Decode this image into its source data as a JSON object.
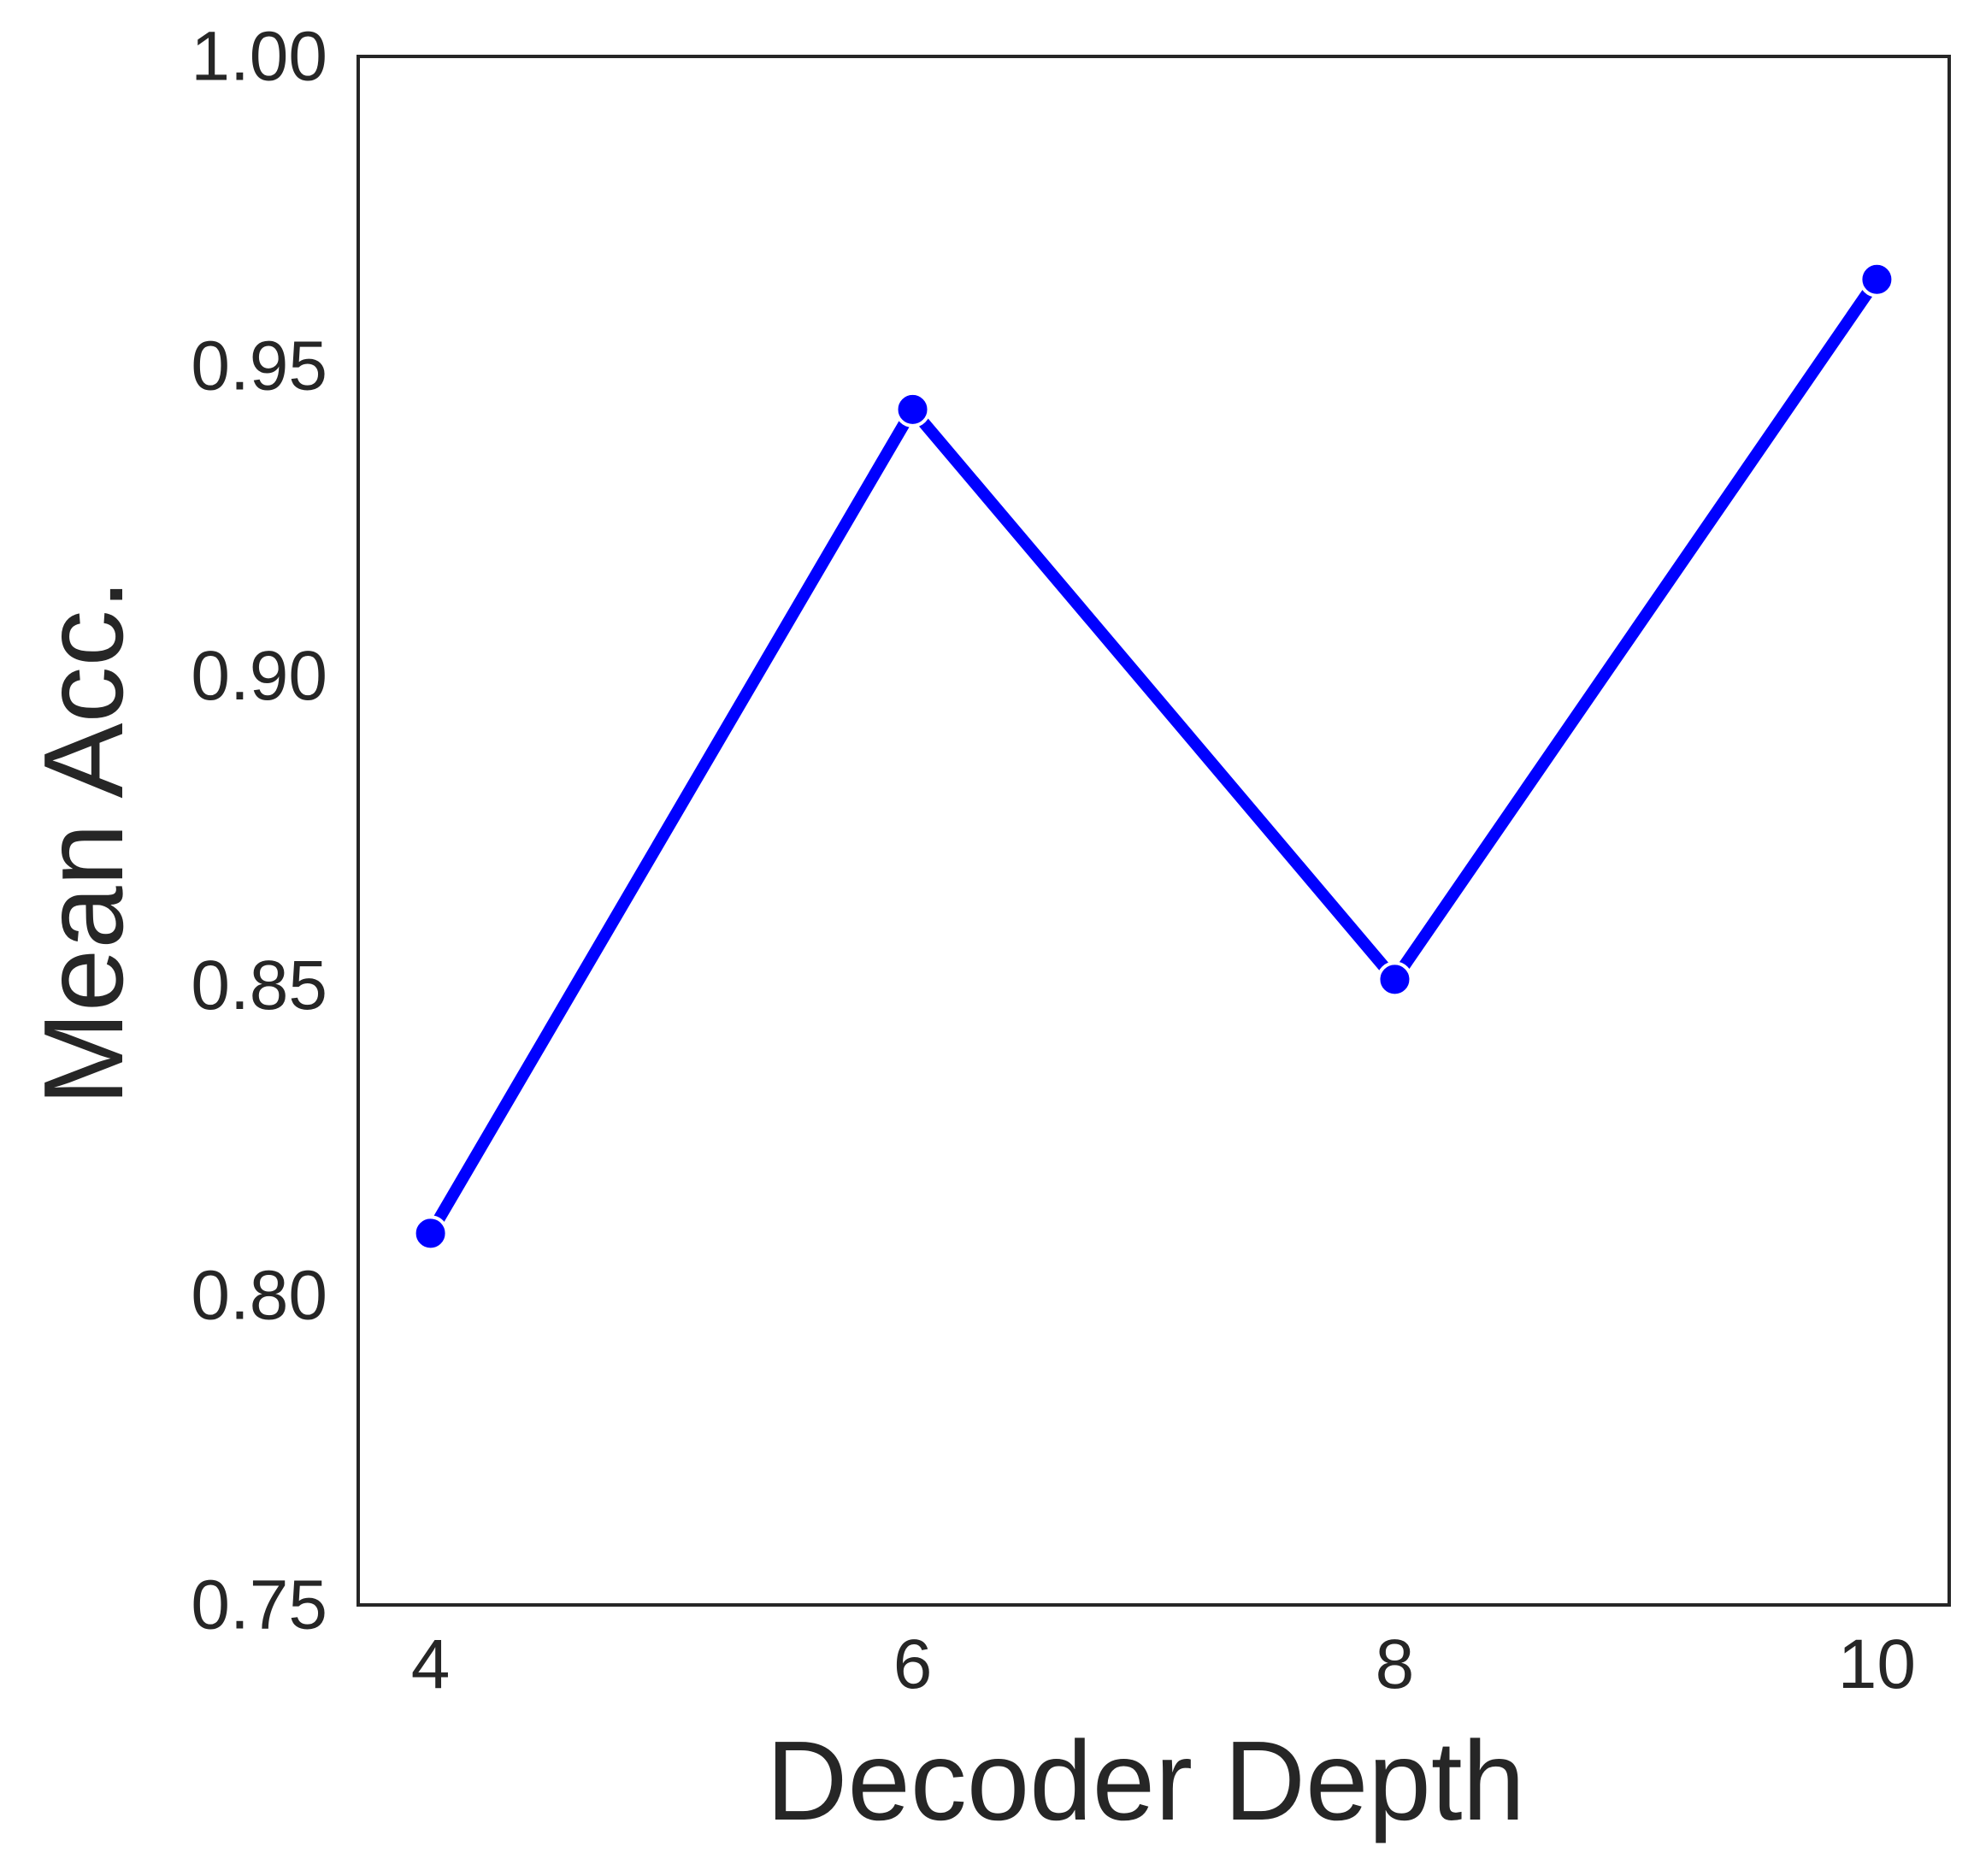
{
  "chart_data": {
    "type": "line",
    "title": "",
    "xlabel": "Decoder Depth",
    "ylabel": "Mean Acc.",
    "x": [
      4,
      6,
      8,
      10
    ],
    "series": [
      {
        "values": [
          0.81,
          0.943,
          0.851,
          0.964
        ],
        "color": "#0000ff",
        "marker": "circle"
      }
    ],
    "xticks": [
      4,
      6,
      8,
      10
    ],
    "xtick_labels": [
      "4",
      "6",
      "8",
      "10"
    ],
    "yticks": [
      0.75,
      0.8,
      0.85,
      0.9,
      0.95,
      1.0
    ],
    "ytick_labels": [
      "0.75",
      "0.80",
      "0.85",
      "0.90",
      "0.95",
      "1.00"
    ],
    "xlim": [
      3.7,
      10.3
    ],
    "ylim": [
      0.75,
      1.0
    ],
    "grid": false,
    "legend": "none"
  }
}
